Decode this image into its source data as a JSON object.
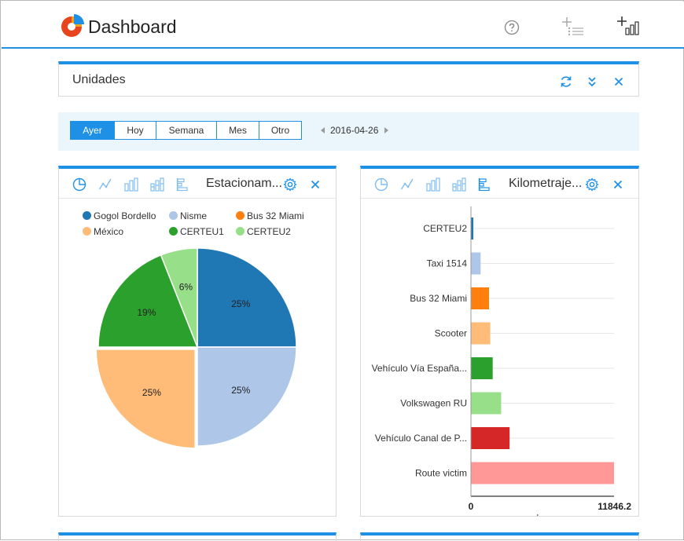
{
  "app": {
    "title": "Dashboard"
  },
  "units_panel": {
    "title": "Unidades"
  },
  "period": {
    "buttons": [
      "Ayer",
      "Hoy",
      "Semana",
      "Mes",
      "Otro"
    ],
    "active": "Ayer",
    "date": "2016-04-26"
  },
  "colors": {
    "accent": "#1e90e6"
  },
  "widget_pie": {
    "title": "Estacionam...",
    "legend": [
      {
        "label": "Gogol Bordello",
        "color": "#1f77b4"
      },
      {
        "label": "Nisme",
        "color": "#aec7e8"
      },
      {
        "label": "Bus 32 Miami",
        "color": "#ff7f0e"
      },
      {
        "label": "México",
        "color": "#ffbb78"
      },
      {
        "label": "CERTEU1",
        "color": "#2ca02c"
      },
      {
        "label": "CERTEU2",
        "color": "#98df8a"
      }
    ]
  },
  "widget_bar": {
    "title": "Kilometraje...",
    "axis_min_label": "0",
    "axis_max_label": "11846.2",
    "unit": "km"
  },
  "chart_data": [
    {
      "type": "pie",
      "slices": [
        {
          "label": "Gogol Bordello",
          "value": 25,
          "text": "25%",
          "color": "#1f77b4"
        },
        {
          "label": "Nisme",
          "value": 25,
          "text": "25%",
          "color": "#aec7e8"
        },
        {
          "label": "México",
          "value": 25,
          "text": "25%",
          "color": "#ffbb78"
        },
        {
          "label": "CERTEU1",
          "value": 19,
          "text": "19%",
          "color": "#2ca02c"
        },
        {
          "label": "CERTEU2",
          "value": 6,
          "text": "6%",
          "color": "#98df8a"
        }
      ]
    },
    {
      "type": "bar",
      "orientation": "horizontal",
      "categories": [
        "CERTEU2",
        "Taxi 1514",
        "Bus 32 Miami",
        "Scooter",
        "Vehículo Vía España...",
        "Volkswagen RU",
        "Vehículo Canal de P...",
        "Route victim"
      ],
      "values": [
        200,
        800,
        1500,
        1600,
        1800,
        2500,
        3200,
        11846.2
      ],
      "colors": [
        "#1f77b4",
        "#aec7e8",
        "#ff7f0e",
        "#ffbb78",
        "#2ca02c",
        "#98df8a",
        "#d62728",
        "#ff9896"
      ],
      "xlim": [
        0,
        11846.2
      ],
      "xlabel": "km",
      "grid": true
    }
  ]
}
